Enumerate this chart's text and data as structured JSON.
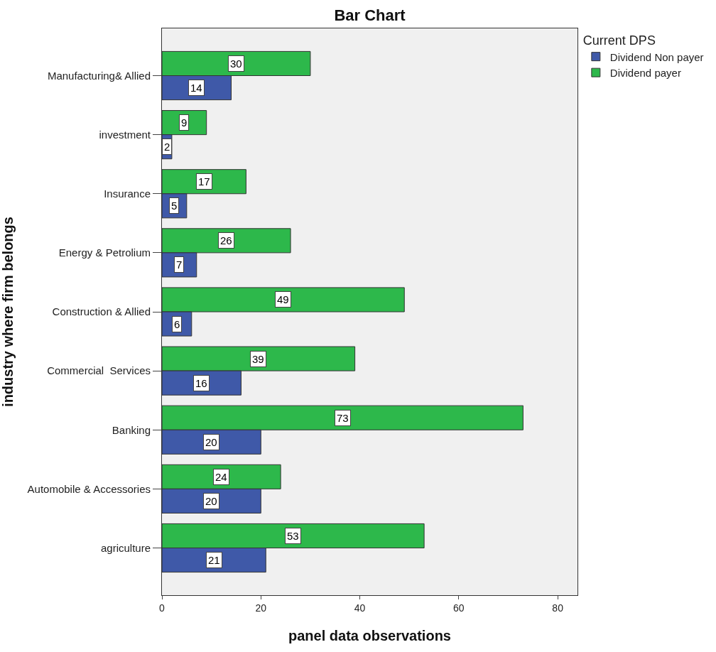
{
  "chart_data": {
    "type": "bar",
    "orientation": "horizontal",
    "title": "Bar Chart",
    "xlabel": "panel data observations",
    "ylabel": "industry where firm belongs",
    "legend_title": "Current DPS",
    "categories": [
      "Manufacturing& Allied",
      "investment",
      "Insurance",
      "Energy & Petrolium",
      "Construction & Allied",
      "Commercial  Services",
      "Banking",
      "Automobile & Accessories",
      "agriculture"
    ],
    "series": [
      {
        "name": "Dividend Non payer",
        "color": "#3f59a8",
        "values": [
          14,
          2,
          5,
          7,
          6,
          16,
          20,
          20,
          21
        ]
      },
      {
        "name": "Dividend payer",
        "color": "#2db84b",
        "values": [
          30,
          9,
          17,
          26,
          49,
          39,
          73,
          24,
          53
        ]
      }
    ],
    "xlim": [
      0,
      84
    ],
    "xticks": [
      0,
      20,
      40,
      60,
      80
    ],
    "grid": false,
    "legend": "top right",
    "data_labels": true
  }
}
